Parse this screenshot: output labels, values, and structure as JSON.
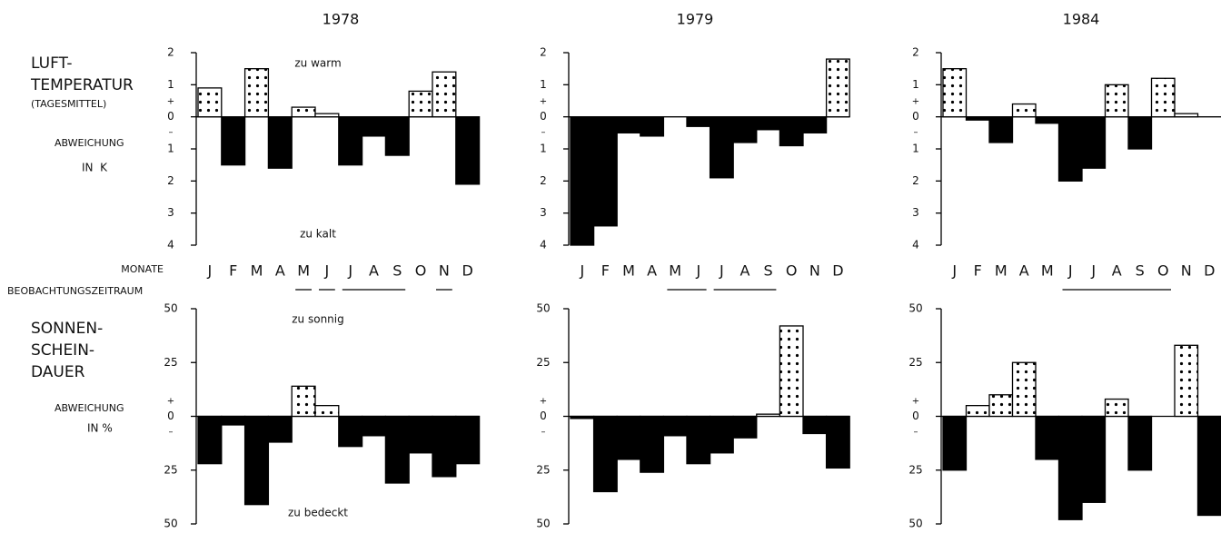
{
  "row_labels": {
    "temperature": [
      "LUFT-",
      "TEMPERATUR",
      "(TAGESMITTEL)"
    ],
    "temperature_unit": [
      "ABWEICHUNG",
      "IN  K"
    ],
    "months_label": "MONATE",
    "period_label": "BEOBACHTUNGSZEITRAUM",
    "sunshine": [
      "SONNEN-",
      "SCHEIN-",
      "DAUER"
    ],
    "sunshine_unit": [
      "ABWEICHUNG",
      "IN %"
    ]
  },
  "chart_data": [
    {
      "type": "bar",
      "title": "1978",
      "categories": [
        "J",
        "F",
        "M",
        "A",
        "M",
        "J",
        "J",
        "A",
        "S",
        "O",
        "N",
        "D"
      ],
      "values": [
        0.9,
        -1.5,
        1.5,
        -1.6,
        0.3,
        0.1,
        -1.5,
        -0.6,
        -1.2,
        0.8,
        1.4,
        -2.1
      ],
      "color": "#000",
      "positive_pattern": "dots",
      "ylim": [
        -4,
        2
      ],
      "yticks": [
        2,
        1,
        0,
        {
          "value": -1,
          "label": "1"
        },
        {
          "value": -2,
          "label": "2"
        },
        {
          "value": -3,
          "label": "3"
        },
        {
          "value": -4,
          "label": "4"
        }
      ],
      "signs": [
        "+",
        "–"
      ],
      "annotations": [
        "zu warm",
        "zu kalt"
      ],
      "observation_periods": [
        [
          4,
          4
        ],
        [
          5,
          5
        ],
        [
          6,
          8
        ],
        [
          10,
          10
        ]
      ]
    },
    {
      "type": "bar",
      "title": "1979",
      "categories": [
        "J",
        "F",
        "M",
        "A",
        "M",
        "J",
        "J",
        "A",
        "S",
        "O",
        "N",
        "D"
      ],
      "values": [
        -4.0,
        -3.4,
        -0.5,
        -0.6,
        0,
        -0.3,
        -1.9,
        -0.8,
        -0.4,
        -0.9,
        -0.5,
        1.8
      ],
      "color": "#000",
      "positive_pattern": "dots",
      "ylim": [
        -4,
        2
      ],
      "yticks": [
        2,
        1,
        0,
        {
          "value": -1,
          "label": "1"
        },
        {
          "value": -2,
          "label": "2"
        },
        {
          "value": -3,
          "label": "3"
        },
        {
          "value": -4,
          "label": "4"
        }
      ],
      "signs": [
        "+",
        "–"
      ],
      "observation_periods": [
        [
          4,
          5
        ],
        [
          6,
          8
        ]
      ]
    },
    {
      "type": "bar",
      "title": "1984",
      "categories": [
        "J",
        "F",
        "M",
        "A",
        "M",
        "J",
        "J",
        "A",
        "S",
        "O",
        "N",
        "D"
      ],
      "values": [
        1.5,
        -0.1,
        -0.8,
        0.4,
        -0.2,
        -2.0,
        -1.6,
        1.0,
        -1.0,
        1.2,
        0.1,
        0
      ],
      "color": "#000",
      "positive_pattern": "dots",
      "ylim": [
        -4,
        2
      ],
      "yticks": [
        2,
        1,
        0,
        {
          "value": -1,
          "label": "1"
        },
        {
          "value": -2,
          "label": "2"
        },
        {
          "value": -3,
          "label": "3"
        },
        {
          "value": -4,
          "label": "4"
        }
      ],
      "signs": [
        "+",
        "–"
      ],
      "observation_periods": [
        [
          5,
          9
        ]
      ]
    },
    {
      "type": "bar",
      "categories": [
        null,
        null,
        null,
        null,
        null,
        null,
        null,
        null,
        null,
        null,
        null,
        null
      ],
      "values": [
        -22,
        -4,
        -41,
        -12,
        14,
        5,
        -14,
        -9,
        -31,
        -17,
        -28,
        -22
      ],
      "color": "#000",
      "positive_pattern": "dots",
      "ylim": [
        -50,
        50
      ],
      "yticks": [
        50,
        25,
        0,
        {
          "value": -25,
          "label": "25"
        },
        {
          "value": -50,
          "label": "50"
        }
      ],
      "signs": [
        "+",
        "–"
      ],
      "annotations": [
        "zu sonnig",
        "zu bedeckt"
      ]
    },
    {
      "type": "bar",
      "categories": [
        null,
        null,
        null,
        null,
        null,
        null,
        null,
        null,
        null,
        null,
        null,
        null
      ],
      "values": [
        -1,
        -35,
        -20,
        -26,
        -9,
        -22,
        -17,
        -10,
        1,
        42,
        -8,
        -24
      ],
      "color": "#000",
      "positive_pattern": "dots",
      "ylim": [
        -50,
        50
      ],
      "yticks": [
        50,
        25,
        0,
        {
          "value": -25,
          "label": "25"
        },
        {
          "value": -50,
          "label": "50"
        }
      ],
      "signs": [
        "+",
        "–"
      ]
    },
    {
      "type": "bar",
      "categories": [
        null,
        null,
        null,
        null,
        null,
        null,
        null,
        null,
        null,
        null,
        null,
        null
      ],
      "values": [
        -25,
        5,
        10,
        25,
        -20,
        -48,
        -40,
        8,
        -25,
        0,
        33,
        -46
      ],
      "color": "#000",
      "positive_pattern": "dots",
      "ylim": [
        -50,
        50
      ],
      "yticks": [
        50,
        25,
        0,
        {
          "value": -25,
          "label": "25"
        },
        {
          "value": -50,
          "label": "50"
        }
      ],
      "signs": [
        "+",
        "–"
      ]
    }
  ]
}
